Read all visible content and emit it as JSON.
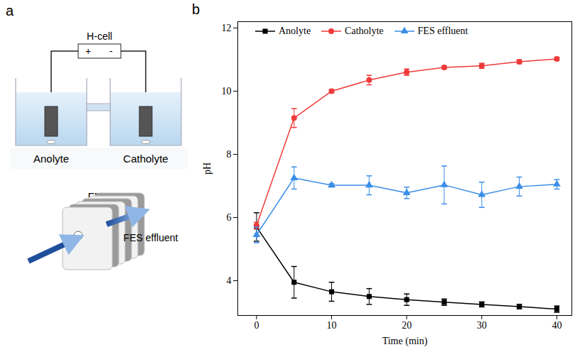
{
  "diagram": {
    "panel": "a",
    "h_cell": {
      "label": "H-cell",
      "terminals": [
        "+",
        "-"
      ],
      "compartments": [
        "Anolyte",
        "Catholyte"
      ]
    },
    "fes": {
      "label": "FES",
      "outlet": "FES effluent"
    }
  },
  "chart_data": {
    "type": "line",
    "title": "b",
    "x_label": "Time (min)",
    "y_label": "pH",
    "x": [
      0,
      5,
      10,
      15,
      20,
      25,
      30,
      35,
      40
    ],
    "series": [
      {
        "name": "Anolyte",
        "color": "#000000",
        "marker": "square",
        "values": [
          5.7,
          3.95,
          3.65,
          3.5,
          3.4,
          3.32,
          3.25,
          3.18,
          3.1
        ],
        "errors": [
          0.45,
          0.5,
          0.3,
          0.25,
          0.18,
          0.1,
          0.08,
          0.07,
          0.1
        ]
      },
      {
        "name": "Catholyte",
        "color": "#ef3b3b",
        "marker": "circle",
        "values": [
          5.75,
          9.15,
          10.0,
          10.35,
          10.6,
          10.75,
          10.8,
          10.93,
          11.02
        ],
        "errors": [
          0.1,
          0.3,
          0.05,
          0.15,
          0.1,
          0.05,
          0.08,
          0.06,
          0.05
        ]
      },
      {
        "name": "FES effluent",
        "color": "#3a8ee6",
        "marker": "triangle",
        "values": [
          5.45,
          7.25,
          7.02,
          7.02,
          6.78,
          7.03,
          6.72,
          6.98,
          7.05
        ],
        "errors": [
          0.25,
          0.35,
          0.05,
          0.3,
          0.18,
          0.6,
          0.4,
          0.3,
          0.15
        ]
      }
    ],
    "xlim": [
      -2.5,
      42
    ],
    "ylim": [
      2.9,
      12.2
    ],
    "xticks": [
      0,
      10,
      20,
      30,
      40
    ],
    "yticks": [
      4,
      6,
      8,
      10,
      12
    ],
    "grid": false,
    "legend": "top"
  }
}
